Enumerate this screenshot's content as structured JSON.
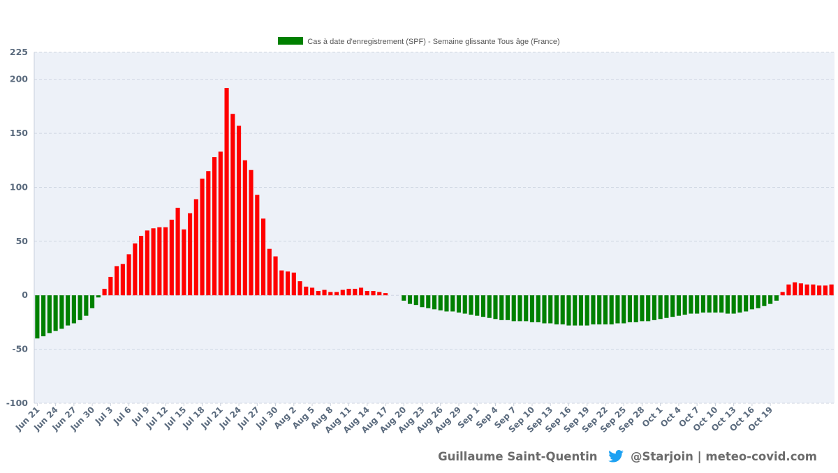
{
  "chart_data": {
    "type": "bar",
    "legend": [
      {
        "label": "Cas à date d'enregistrement (SPF) - Semaine glissante Tous âge (France)",
        "color": "#008000"
      }
    ],
    "positive_color": "#ff0000",
    "negative_color": "#008000",
    "grid": true,
    "legend_position": "top-center",
    "ylim": [
      -100,
      225
    ],
    "yticks": [
      "225",
      "200",
      "150",
      "100",
      "50",
      "0",
      "-50",
      "-100"
    ],
    "ytick_values": [
      225,
      200,
      150,
      100,
      50,
      0,
      -50,
      -100
    ],
    "xtick_labels": [
      "Jun 21",
      "Jun 24",
      "Jun 27",
      "Jun 30",
      "Jul 3",
      "Jul 6",
      "Jul 9",
      "Jul 12",
      "Jul 15",
      "Jul 18",
      "Jul 21",
      "Jul 24",
      "Jul 27",
      "Jul 30",
      "Aug 2",
      "Aug 5",
      "Aug 8",
      "Aug 11",
      "Aug 14",
      "Aug 17",
      "Aug 20",
      "Aug 23",
      "Aug 26",
      "Aug 29",
      "Sep 1",
      "Sep 4",
      "Sep 7",
      "Sep 10",
      "Sep 13",
      "Sep 16",
      "Sep 19",
      "Sep 22",
      "Sep 25",
      "Sep 28",
      "Oct 1",
      "Oct 4",
      "Oct 7",
      "Oct 10",
      "Oct 13",
      "Oct 16",
      "Oct 19"
    ],
    "x_start": "Jun 21",
    "x_end": "Oct 21",
    "values": [
      -40,
      -38,
      -35,
      -33,
      -31,
      -28,
      -26,
      -23,
      -19,
      -12,
      -2,
      6,
      17,
      27,
      29,
      38,
      48,
      55,
      60,
      62,
      63,
      63,
      70,
      81,
      61,
      76,
      89,
      108,
      115,
      128,
      133,
      192,
      168,
      157,
      125,
      116,
      93,
      71,
      43,
      36,
      23,
      22,
      21,
      13,
      8,
      7,
      4,
      5,
      3,
      3,
      5,
      6,
      6,
      7,
      4,
      4,
      3,
      2,
      0,
      0,
      -5,
      -8,
      -9,
      -11,
      -12,
      -13,
      -14,
      -15,
      -15,
      -16,
      -17,
      -18,
      -19,
      -20,
      -21,
      -22,
      -23,
      -23,
      -24,
      -24,
      -24,
      -25,
      -25,
      -26,
      -26,
      -27,
      -27,
      -28,
      -28,
      -28,
      -28,
      -27,
      -27,
      -27,
      -27,
      -26,
      -26,
      -25,
      -25,
      -24,
      -24,
      -23,
      -22,
      -21,
      -20,
      -19,
      -18,
      -17,
      -17,
      -16,
      -16,
      -16,
      -16,
      -17,
      -17,
      -16,
      -15,
      -13,
      -12,
      -10,
      -8,
      -5,
      3,
      10,
      12,
      11,
      10,
      10,
      9,
      9,
      10
    ]
  },
  "footer": {
    "author": "Guillaume Saint-Quentin",
    "handle": "@Starjoin | meteo-covid.com",
    "twitter_icon_color": "#1da1f2"
  }
}
